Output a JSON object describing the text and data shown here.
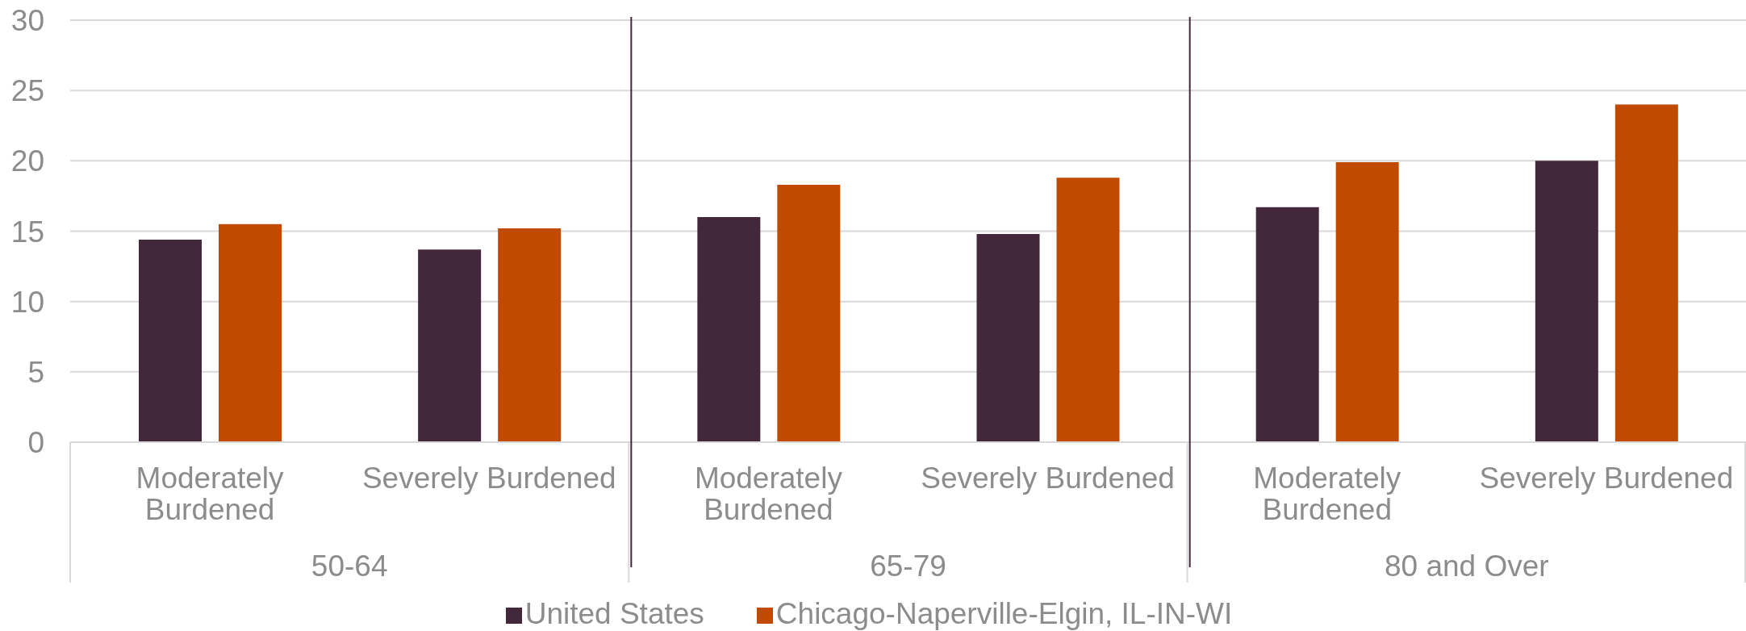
{
  "chart_data": {
    "type": "bar",
    "categories": [
      "Moderately Burdened",
      "Severely Burdened",
      "Moderately Burdened",
      "Severely Burdened",
      "Moderately Burdened",
      "Severely Burdened"
    ],
    "series": [
      {
        "name": "United States",
        "color": "#43273a",
        "values": [
          14.4,
          13.7,
          16.0,
          14.8,
          16.7,
          20.0
        ]
      },
      {
        "name": "Chicago-Naperville-Elgin, IL-IN-WI",
        "color": "#c04b00",
        "values": [
          15.5,
          15.2,
          18.3,
          18.8,
          19.9,
          24.0
        ]
      }
    ],
    "ylim": [
      0,
      30
    ],
    "yticks": [
      0,
      5,
      10,
      15,
      20,
      25,
      30
    ],
    "grid": "y",
    "legend": "bottom",
    "annotations": [
      "50-64",
      "65-79",
      "80 and Over"
    ]
  }
}
